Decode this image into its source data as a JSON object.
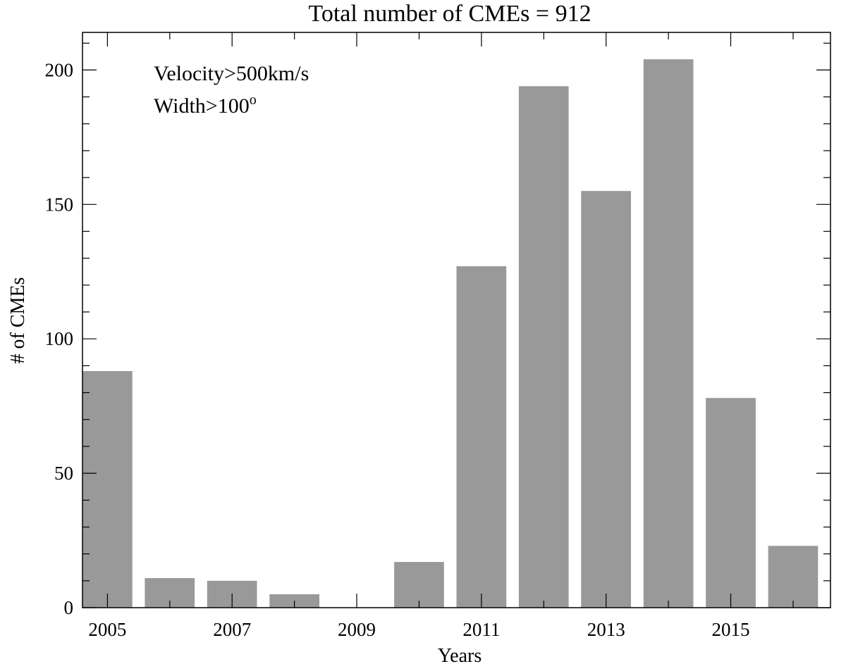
{
  "chart_data": {
    "type": "bar",
    "title": "Total number of CMEs = 912",
    "xlabel": "Years",
    "ylabel": "# of CMEs",
    "categories": [
      "2005",
      "2006",
      "2007",
      "2008",
      "2009",
      "2010",
      "2011",
      "2012",
      "2013",
      "2014",
      "2015",
      "2016"
    ],
    "values": [
      88,
      11,
      10,
      5,
      0,
      17,
      127,
      194,
      155,
      204,
      78,
      23
    ],
    "x_tick_labels": [
      "2005",
      "2007",
      "2009",
      "2011",
      "2013",
      "2015"
    ],
    "y_ticks": [
      0,
      50,
      100,
      150,
      200
    ],
    "y_tick_labels": [
      "0",
      "50",
      "100",
      "150",
      "200"
    ],
    "ylim": [
      0,
      214
    ],
    "bar_color": "#999999",
    "annotation": {
      "line1": "Velocity>500km/s",
      "line2_base": "Width>100",
      "line2_sup": "o"
    },
    "grid": false,
    "legend": "none"
  }
}
